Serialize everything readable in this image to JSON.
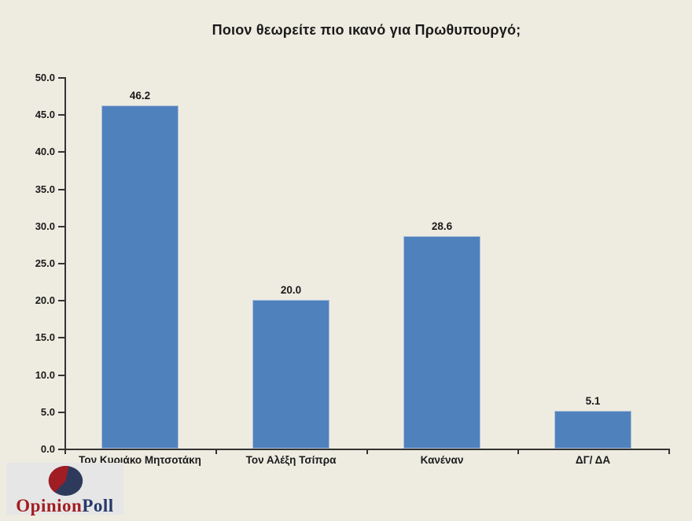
{
  "chart_data": {
    "type": "bar",
    "title": "Ποιον θεωρείτε πιο ικανό για Πρωθυπουργό;",
    "categories": [
      "Τον Κυριάκο Μητσοτάκη",
      "Τον Αλέξη Τσίπρα",
      "Κανέναν",
      "ΔΓ/ ΔΑ"
    ],
    "values": [
      46.2,
      20.0,
      28.6,
      5.1
    ],
    "value_labels": [
      "46.2",
      "20.0",
      "28.6",
      "5.1"
    ],
    "xlabel": "",
    "ylabel": "",
    "ylim": [
      0,
      50
    ],
    "ytick_step": 5,
    "ytick_decimals": 1,
    "grid": false,
    "legend": "none",
    "bar_color": "#4f81bd",
    "bar_border_color": "#aec1d9"
  },
  "colors": {
    "background": "#eeece1",
    "axis": "#333333",
    "text": "#1a1a1a",
    "logo_background": "#e6e6e6"
  },
  "logo": {
    "icon": "pie-chart-icon",
    "text_primary": "Opinion",
    "text_secondary": "Poll",
    "primary_color": "#a21e23",
    "secondary_color": "#27396a",
    "pie_main_color": "#2e3a5c",
    "pie_slice_color": "#9f1d23"
  }
}
